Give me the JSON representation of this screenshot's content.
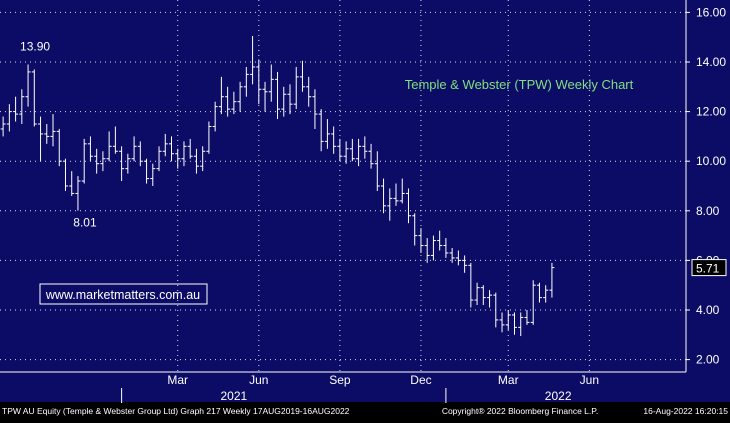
{
  "chart_data": {
    "type": "ohlc",
    "title": "Temple & Webster (TPW) Weekly Chart",
    "watermark_text": "www.marketmatters.com.au",
    "ylim": [
      1.5,
      16.5
    ],
    "y_ticks": [
      "16.00",
      "14.00",
      "12.00",
      "10.00",
      "8.00",
      "6.00",
      "4.00",
      "2.00"
    ],
    "y_tick_values": [
      16,
      14,
      12,
      10,
      8,
      6,
      4,
      2
    ],
    "x_month_labels": [
      {
        "label": "Mar",
        "week": 28
      },
      {
        "label": "Jun",
        "week": 41
      },
      {
        "label": "Sep",
        "week": 54
      },
      {
        "label": "Dec",
        "week": 67
      },
      {
        "label": "Mar",
        "week": 81
      },
      {
        "label": "Jun",
        "week": 94
      }
    ],
    "x_year_labels": [
      {
        "label": "2021",
        "week": 37
      },
      {
        "label": "2022",
        "week": 89
      }
    ],
    "year_divider_weeks": [
      19,
      71
    ],
    "annotations": [
      {
        "text": "13.90",
        "week": 4,
        "value": 13.9,
        "position": "above"
      },
      {
        "text": "8.01",
        "week": 12,
        "value": 8.01,
        "position": "below"
      }
    ],
    "last_price_label": "5.71",
    "last_price": 5.71,
    "weeks_total": 110,
    "series": [
      {
        "values": [
          [
            11.3,
            11.8,
            11.0,
            11.5
          ],
          [
            11.5,
            12.3,
            11.2,
            12.0
          ],
          [
            12.0,
            12.6,
            11.6,
            11.9
          ],
          [
            11.9,
            12.9,
            11.5,
            12.6
          ],
          [
            12.6,
            13.9,
            12.2,
            13.6
          ],
          [
            13.6,
            13.7,
            11.4,
            11.5
          ],
          [
            11.5,
            11.8,
            10.0,
            11.1
          ],
          [
            11.1,
            11.5,
            10.7,
            11.0
          ],
          [
            11.0,
            11.9,
            10.6,
            11.2
          ],
          [
            11.2,
            11.3,
            9.8,
            10.0
          ],
          [
            10.0,
            10.1,
            8.8,
            9.0
          ],
          [
            9.0,
            9.6,
            8.6,
            8.7
          ],
          [
            8.7,
            9.4,
            8.01,
            9.2
          ],
          [
            9.2,
            10.9,
            9.1,
            10.7
          ],
          [
            10.7,
            11.0,
            10.0,
            10.2
          ],
          [
            10.2,
            10.5,
            9.5,
            9.9
          ],
          [
            9.9,
            10.4,
            9.6,
            10.1
          ],
          [
            10.1,
            11.2,
            10.0,
            10.6
          ],
          [
            10.6,
            11.4,
            10.3,
            10.4
          ],
          [
            10.4,
            10.6,
            9.2,
            9.7
          ],
          [
            9.7,
            10.3,
            9.5,
            10.1
          ],
          [
            10.1,
            11.0,
            10.0,
            10.6
          ],
          [
            10.6,
            10.8,
            9.8,
            10.0
          ],
          [
            10.0,
            10.1,
            9.1,
            9.3
          ],
          [
            9.3,
            9.9,
            9.0,
            9.7
          ],
          [
            9.7,
            10.6,
            9.6,
            10.4
          ],
          [
            10.4,
            11.1,
            10.2,
            10.7
          ],
          [
            10.7,
            11.0,
            10.0,
            10.3
          ],
          [
            10.3,
            10.5,
            9.7,
            10.1
          ],
          [
            10.1,
            10.8,
            9.8,
            10.6
          ],
          [
            10.6,
            10.9,
            10.1,
            10.2
          ],
          [
            10.2,
            10.5,
            9.5,
            9.8
          ],
          [
            9.8,
            10.6,
            9.6,
            10.4
          ],
          [
            10.4,
            11.6,
            10.3,
            11.4
          ],
          [
            11.4,
            12.4,
            11.2,
            12.2
          ],
          [
            12.2,
            13.4,
            11.9,
            12.6
          ],
          [
            12.6,
            13.0,
            11.8,
            12.1
          ],
          [
            12.1,
            12.8,
            11.9,
            12.4
          ],
          [
            12.4,
            13.2,
            12.0,
            13.0
          ],
          [
            13.0,
            13.8,
            12.6,
            13.5
          ],
          [
            13.5,
            15.05,
            13.1,
            13.8
          ],
          [
            13.8,
            14.1,
            12.3,
            12.9
          ],
          [
            12.9,
            13.2,
            12.0,
            12.8
          ],
          [
            12.8,
            13.9,
            12.4,
            13.3
          ],
          [
            13.3,
            13.6,
            11.7,
            12.1
          ],
          [
            12.1,
            13.0,
            11.8,
            12.7
          ],
          [
            12.7,
            13.1,
            11.9,
            12.3
          ],
          [
            12.3,
            13.8,
            12.1,
            13.4
          ],
          [
            13.4,
            14.05,
            12.8,
            13.0
          ],
          [
            13.0,
            13.4,
            12.2,
            12.6
          ],
          [
            12.6,
            12.9,
            11.3,
            11.9
          ],
          [
            11.9,
            12.1,
            10.4,
            10.8
          ],
          [
            10.8,
            11.7,
            10.5,
            11.1
          ],
          [
            11.1,
            11.4,
            10.3,
            10.6
          ],
          [
            10.6,
            10.9,
            10.0,
            10.2
          ],
          [
            10.2,
            10.8,
            9.9,
            10.5
          ],
          [
            10.5,
            10.9,
            10.0,
            10.1
          ],
          [
            10.1,
            10.9,
            9.8,
            10.6
          ],
          [
            10.6,
            11.0,
            10.1,
            10.4
          ],
          [
            10.4,
            10.7,
            9.7,
            9.9
          ],
          [
            9.9,
            10.4,
            8.8,
            9.0
          ],
          [
            9.0,
            9.3,
            7.9,
            8.2
          ],
          [
            8.2,
            8.9,
            7.6,
            8.5
          ],
          [
            8.5,
            9.1,
            8.2,
            8.4
          ],
          [
            8.4,
            9.3,
            8.3,
            8.7
          ],
          [
            8.7,
            8.9,
            7.5,
            7.8
          ],
          [
            7.8,
            7.9,
            6.6,
            7.0
          ],
          [
            7.0,
            7.3,
            6.3,
            6.6
          ],
          [
            6.6,
            6.9,
            5.9,
            6.2
          ],
          [
            6.2,
            7.0,
            6.0,
            6.8
          ],
          [
            6.8,
            7.2,
            6.4,
            6.6
          ],
          [
            6.6,
            6.9,
            6.1,
            6.3
          ],
          [
            6.3,
            6.5,
            5.9,
            6.1
          ],
          [
            6.1,
            6.4,
            5.8,
            6.0
          ],
          [
            6.0,
            6.2,
            5.5,
            5.8
          ],
          [
            5.8,
            5.9,
            4.1,
            4.4
          ],
          [
            4.4,
            5.1,
            4.2,
            4.9
          ],
          [
            4.9,
            5.0,
            4.2,
            4.5
          ],
          [
            4.5,
            4.8,
            4.1,
            4.6
          ],
          [
            4.6,
            4.7,
            3.3,
            3.6
          ],
          [
            3.6,
            3.9,
            3.1,
            3.4
          ],
          [
            3.4,
            4.0,
            3.2,
            3.8
          ],
          [
            3.8,
            3.9,
            3.0,
            3.3
          ],
          [
            3.3,
            3.9,
            2.95,
            3.7
          ],
          [
            3.7,
            4.0,
            3.4,
            3.5
          ],
          [
            3.5,
            5.2,
            3.4,
            5.0
          ],
          [
            5.0,
            5.1,
            4.3,
            4.5
          ],
          [
            4.5,
            5.0,
            4.3,
            4.8
          ],
          [
            4.8,
            5.9,
            4.5,
            5.71
          ]
        ]
      }
    ]
  },
  "footer": {
    "left": "TPW AU Equity (Temple & Webster Group Ltd) Graph 217  Weekly 17AUG2019-16AUG2022",
    "center": "Copyright® 2022 Bloomberg Finance L.P.",
    "right": "16-Aug-2022 16:20:15"
  },
  "colors": {
    "background": "#0c0c66",
    "bars": "#ffffff",
    "grid": "#ffffff",
    "title": "#7ee07e",
    "axis_text": "#ffffff",
    "footer_bg": "#000000",
    "watermark_border": "#ffffff",
    "price_box": "#000000"
  }
}
